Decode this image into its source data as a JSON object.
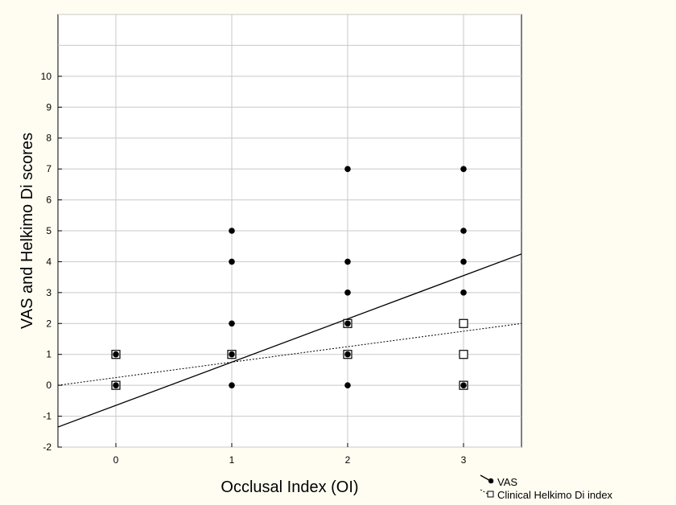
{
  "chart_data": {
    "type": "scatter",
    "title": "",
    "xlabel": "Occlusal Index (OI)",
    "ylabel": "VAS and Helkimo Di scores",
    "xlim": [
      -0.5,
      3.5
    ],
    "ylim": [
      -2,
      12
    ],
    "x_ticks": [
      0,
      1,
      2,
      3
    ],
    "y_ticks": [
      -2,
      -1,
      0,
      1,
      2,
      3,
      4,
      5,
      6,
      7,
      8,
      9,
      10
    ],
    "grid": true,
    "legend_placement": "bottom-right, outside plot",
    "background_color": "#fffdf2",
    "plot_background_color": "#ffffff",
    "series": [
      {
        "name": "VAS",
        "marker": "filled-circle",
        "line_style": "solid",
        "color": "#000000",
        "points": [
          {
            "x": 0,
            "y": 0
          },
          {
            "x": 0,
            "y": 1
          },
          {
            "x": 1,
            "y": 0
          },
          {
            "x": 1,
            "y": 1
          },
          {
            "x": 1,
            "y": 2
          },
          {
            "x": 1,
            "y": 4
          },
          {
            "x": 1,
            "y": 5
          },
          {
            "x": 2,
            "y": 0
          },
          {
            "x": 2,
            "y": 1
          },
          {
            "x": 2,
            "y": 2
          },
          {
            "x": 2,
            "y": 3
          },
          {
            "x": 2,
            "y": 4
          },
          {
            "x": 2,
            "y": 7
          },
          {
            "x": 3,
            "y": 0
          },
          {
            "x": 3,
            "y": 3
          },
          {
            "x": 3,
            "y": 4
          },
          {
            "x": 3,
            "y": 5
          },
          {
            "x": 3,
            "y": 7
          }
        ],
        "fit_line": {
          "x": [
            -0.5,
            3.5
          ],
          "y": [
            -1.35,
            4.25
          ]
        }
      },
      {
        "name": "Clinical Helkimo Di index",
        "marker": "open-square",
        "line_style": "dotted",
        "color": "#000000",
        "points": [
          {
            "x": 0,
            "y": 0
          },
          {
            "x": 0,
            "y": 1
          },
          {
            "x": 1,
            "y": 1
          },
          {
            "x": 2,
            "y": 1
          },
          {
            "x": 2,
            "y": 2
          },
          {
            "x": 3,
            "y": 0
          },
          {
            "x": 3,
            "y": 1
          },
          {
            "x": 3,
            "y": 2
          }
        ],
        "fit_line": {
          "x": [
            -0.5,
            3.5
          ],
          "y": [
            0.0,
            2.0
          ]
        }
      }
    ]
  }
}
